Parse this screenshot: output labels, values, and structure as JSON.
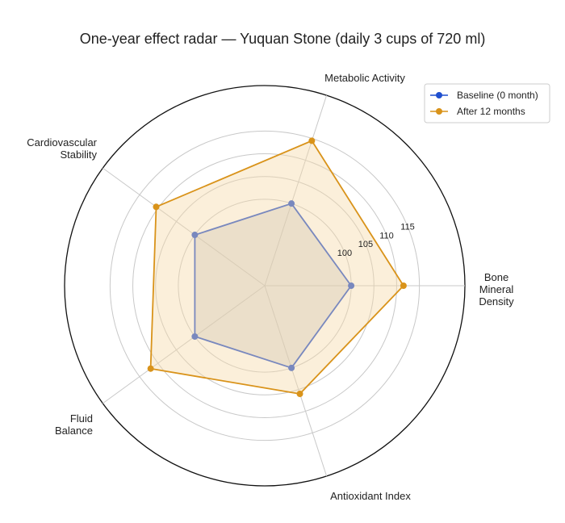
{
  "chart_data": {
    "type": "radar",
    "title": "One-year effect radar — Yuquan Stone (daily 3 cups of 720 ml)",
    "axes": [
      "Bone Mineral Density",
      "Metabolic Activity",
      "Cardiovascular Stability",
      "Fluid Balance",
      "Antioxidant Index"
    ],
    "axis_label_lines": [
      [
        "Bone",
        "Mineral",
        "Density"
      ],
      [
        "Metabolic Activity"
      ],
      [
        "Cardiovascular",
        "Stability"
      ],
      [
        "Fluid",
        "Balance"
      ],
      [
        "Antioxidant Index"
      ]
    ],
    "rlim": [
      81,
      125
    ],
    "r_ticks": [
      100,
      105,
      110,
      115
    ],
    "series": [
      {
        "name": "Baseline (0 month)",
        "color": "#1f4fcf",
        "fill": "#bdbdbd",
        "values": [
          100,
          100,
          100,
          100,
          100
        ]
      },
      {
        "name": "After 12 months",
        "color": "#d9931a",
        "fill": "#f5d9a8",
        "values": [
          111.5,
          114.5,
          110.5,
          112,
          106
        ]
      }
    ],
    "legend_position": "top-right",
    "grid": true
  }
}
